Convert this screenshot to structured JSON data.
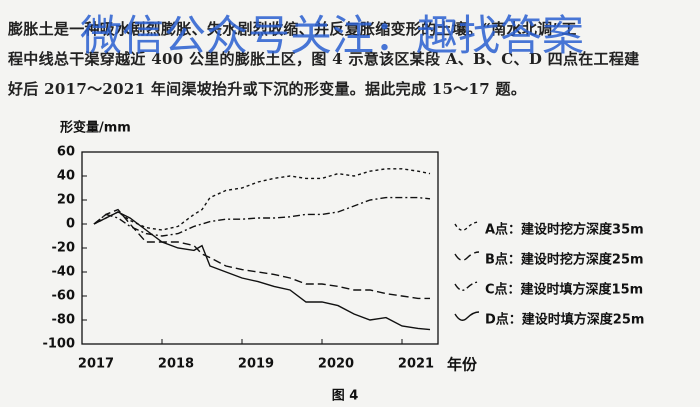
{
  "document": {
    "paragraph": [
      "膨胀土是一种吸水剧烈膨胀、失水剧烈收缩、并反复胀缩变形的土壤。“南水北调”工",
      "程中线总干渠穿越近 400 公里的膨胀土区，图 4 示意该区某段 A、B、C、D 四点在工程建",
      "好后 2017～2021 年间渠坡抬升或下沉的形变量。据此完成 15～17 题。"
    ],
    "watermark": "微信公众号关注：趣找答案",
    "caption": "图 4"
  },
  "chart_data": {
    "type": "line",
    "y_label": "形变量/mm",
    "x_label": "年份",
    "x": [
      2017.15,
      2017.3,
      2017.45,
      2017.6,
      2017.8,
      2018.0,
      2018.2,
      2018.4,
      2018.5,
      2018.6,
      2018.8,
      2019.0,
      2019.2,
      2019.4,
      2019.6,
      2019.8,
      2020.0,
      2020.2,
      2020.4,
      2020.6,
      2020.8,
      2021.0,
      2021.2,
      2021.35
    ],
    "series": [
      {
        "name": "A点：建设时挖方深度35m",
        "color": "#111111",
        "dash": "3,3",
        "values": [
          0,
          5,
          10,
          3,
          -3,
          -5,
          -2,
          8,
          12,
          22,
          28,
          30,
          35,
          38,
          40,
          38,
          38,
          42,
          40,
          44,
          46,
          46,
          44,
          42
        ]
      },
      {
        "name": "B点：建设时挖方深度25m",
        "color": "#111111",
        "dash": "8,4",
        "values": [
          0,
          8,
          12,
          0,
          -15,
          -15,
          -15,
          -18,
          -25,
          -28,
          -35,
          -38,
          -40,
          -42,
          -45,
          -50,
          -50,
          -52,
          -55,
          -55,
          -58,
          -60,
          -62,
          -62
        ]
      },
      {
        "name": "C点：建设时填方深度15m",
        "color": "#111111",
        "dash": "7,3,2,3",
        "values": [
          0,
          8,
          5,
          -2,
          -8,
          -10,
          -8,
          -2,
          0,
          2,
          4,
          4,
          5,
          5,
          6,
          8,
          8,
          10,
          15,
          20,
          22,
          22,
          22,
          21
        ]
      },
      {
        "name": "D点：建设时填方深度25m",
        "color": "#111111",
        "dash": "none",
        "values": [
          0,
          5,
          10,
          5,
          -5,
          -15,
          -20,
          -22,
          -18,
          -35,
          -40,
          -45,
          -48,
          -52,
          -55,
          -65,
          -65,
          -68,
          -75,
          -80,
          -78,
          -85,
          -87,
          -88
        ]
      }
    ],
    "xlim": [
      2017,
      2021.45
    ],
    "xticks": [
      2017,
      2018,
      2019,
      2020,
      2021
    ],
    "ylim": [
      -100,
      60
    ],
    "yticks": [
      -100,
      -80,
      -60,
      -40,
      -20,
      0,
      20,
      40,
      60
    ]
  }
}
